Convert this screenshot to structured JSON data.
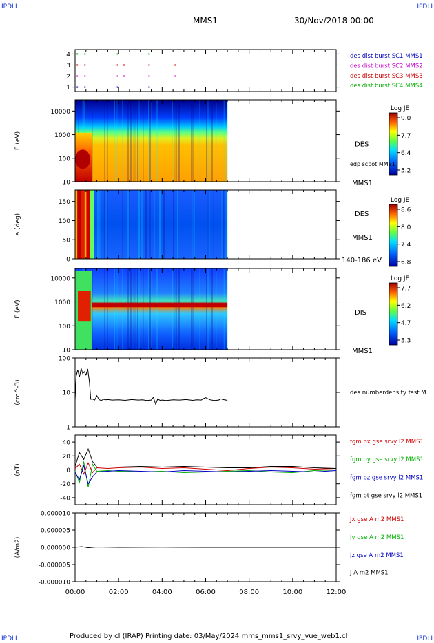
{
  "corner_labels": {
    "top_left": "IPDLI",
    "top_right": "IPDLI",
    "bottom_left": "IPDLI",
    "bottom_right": "IPDLI"
  },
  "header": {
    "spacecraft": "MMS1",
    "datetime": "30/Nov/2018 00:00"
  },
  "footer": "Produced by cl (IRAP)   Printing date: 03/May/2024   mms_mms1_srvy_vue_web1.cl",
  "x_axis": {
    "ticks": [
      "00:00",
      "02:00",
      "04:00",
      "06:00",
      "08:00",
      "10:00",
      "12:00"
    ],
    "range_hours": [
      0,
      12
    ]
  },
  "colors": {
    "red": "#d00000",
    "green": "#00b000",
    "blue": "#0000c0",
    "magenta": "#d000d0",
    "black": "#000000"
  },
  "chart_data": [
    {
      "type": "scatter",
      "id": "burst",
      "ylim": [
        0.6,
        4.4
      ],
      "y_ticks": [
        "4",
        "3",
        "2",
        "1"
      ],
      "y_tick_values": [
        4,
        3,
        2,
        1
      ],
      "legend": [
        {
          "label": "des dist burst SC1 MMS1",
          "color": "#0000c0"
        },
        {
          "label": "des dist burst SC2 MMS2",
          "color": "#d000d0"
        },
        {
          "label": "des dist burst SC3 MMS3",
          "color": "#d00000"
        },
        {
          "label": "des dist burst SC4 MMS4",
          "color": "#00b000"
        }
      ],
      "points": [
        {
          "t": 0.1,
          "y": 4,
          "c": "#00b000"
        },
        {
          "t": 0.45,
          "y": 4,
          "c": "#00b000"
        },
        {
          "t": 1.95,
          "y": 4,
          "c": "#00b000"
        },
        {
          "t": 3.4,
          "y": 4,
          "c": "#00b000"
        },
        {
          "t": 0.1,
          "y": 3,
          "c": "#d00000"
        },
        {
          "t": 0.45,
          "y": 3,
          "c": "#d00000"
        },
        {
          "t": 1.95,
          "y": 3,
          "c": "#d00000"
        },
        {
          "t": 2.25,
          "y": 3,
          "c": "#d00000"
        },
        {
          "t": 3.4,
          "y": 3,
          "c": "#d00000"
        },
        {
          "t": 4.6,
          "y": 3,
          "c": "#d00000"
        },
        {
          "t": 0.1,
          "y": 2,
          "c": "#d000d0"
        },
        {
          "t": 0.45,
          "y": 2,
          "c": "#d000d0"
        },
        {
          "t": 1.95,
          "y": 2,
          "c": "#d000d0"
        },
        {
          "t": 2.25,
          "y": 2,
          "c": "#d000d0"
        },
        {
          "t": 3.4,
          "y": 2,
          "c": "#d000d0"
        },
        {
          "t": 4.6,
          "y": 2,
          "c": "#d000d0"
        },
        {
          "t": 0.1,
          "y": 1,
          "c": "#0000c0"
        },
        {
          "t": 0.45,
          "y": 1,
          "c": "#0000c0"
        },
        {
          "t": 1.95,
          "y": 1,
          "c": "#0000c0"
        },
        {
          "t": 3.4,
          "y": 1,
          "c": "#0000c0"
        }
      ]
    },
    {
      "type": "heatmap",
      "id": "des_energy",
      "ylabel": "E (eV)",
      "y_ticks": [
        "10000",
        "1000",
        "100",
        "10"
      ],
      "y_tick_values": [
        10000,
        1000,
        100,
        10
      ],
      "ylim": [
        10,
        30000
      ],
      "log_y": true,
      "data_extent_hours": [
        0,
        7.0
      ],
      "species": "DES",
      "extra_label": "edp scpot MMS1",
      "bottom_label": "MMS1",
      "colorbar": {
        "title": "Log JE",
        "ticks": [
          "9.0",
          "7.7",
          "6.4",
          "5.2"
        ]
      }
    },
    {
      "type": "heatmap",
      "id": "des_pitch",
      "ylabel": "a (deg)",
      "y_ticks": [
        "150",
        "100",
        "50",
        "0"
      ],
      "y_tick_values": [
        150,
        100,
        50,
        0
      ],
      "ylim": [
        0,
        180
      ],
      "data_extent_hours": [
        0,
        7.0
      ],
      "species": "DES",
      "sc_label": "MMS1",
      "energy_label": "140-186 eV",
      "colorbar": {
        "title": "Log JE",
        "ticks": [
          "8.6",
          "8.0",
          "7.4",
          "6.8"
        ]
      }
    },
    {
      "type": "heatmap",
      "id": "dis_energy",
      "ylabel": "E (eV)",
      "y_ticks": [
        "10000",
        "1000",
        "100",
        "10"
      ],
      "y_tick_values": [
        10000,
        1000,
        100,
        10
      ],
      "ylim": [
        10,
        25000
      ],
      "log_y": true,
      "data_extent_hours": [
        0,
        7.0
      ],
      "species": "DIS",
      "bottom_label": "MMS1",
      "colorbar": {
        "title": "Log JE",
        "ticks": [
          "7.7",
          "6.2",
          "4.7",
          "3.3"
        ]
      }
    },
    {
      "type": "line",
      "id": "density",
      "ylabel": "(cm^-3)",
      "y_ticks": [
        "100",
        "10",
        "1"
      ],
      "y_tick_values": [
        100,
        10,
        1
      ],
      "ylim": [
        1,
        100
      ],
      "log_y": true,
      "legend": [
        {
          "label": "des numberdensity fast M",
          "color": "#000000"
        }
      ],
      "series": [
        {
          "name": "des numberdensity fast M",
          "color": "#000000",
          "t": [
            0.0,
            0.05,
            0.12,
            0.2,
            0.28,
            0.35,
            0.42,
            0.5,
            0.58,
            0.66,
            0.72,
            0.8,
            0.9,
            1.0,
            1.1,
            1.2,
            1.3,
            1.4,
            1.5,
            1.7,
            2.0,
            2.3,
            2.6,
            2.9,
            3.1,
            3.3,
            3.5,
            3.6,
            3.7,
            3.8,
            3.9,
            4.0,
            4.2,
            4.5,
            4.8,
            5.1,
            5.4,
            5.6,
            5.8,
            5.9,
            6.0,
            6.2,
            6.4,
            6.6,
            6.7,
            6.8,
            7.0
          ],
          "values": [
            5.9,
            30,
            45,
            28,
            50,
            35,
            40,
            32,
            48,
            20,
            6.3,
            6.4,
            6.0,
            8.0,
            6.2,
            5.8,
            6.3,
            6.1,
            6.2,
            6.0,
            6.1,
            5.9,
            6.2,
            6.0,
            6.1,
            5.8,
            6.0,
            7.2,
            4.5,
            6.5,
            5.9,
            6.0,
            5.8,
            6.1,
            6.0,
            6.2,
            5.9,
            6.1,
            6.0,
            6.6,
            7.0,
            6.1,
            5.8,
            6.0,
            6.5,
            6.2,
            5.9
          ]
        }
      ]
    },
    {
      "type": "line",
      "id": "magnetic_field",
      "ylabel": "(nT)",
      "y_ticks": [
        "40",
        "20",
        "0",
        "-20",
        "-40"
      ],
      "y_tick_values": [
        40,
        20,
        0,
        -20,
        -40
      ],
      "ylim": [
        -50,
        50
      ],
      "legend": [
        {
          "label": "fgm bx gse srvy l2 MMS1",
          "color": "#d00000"
        },
        {
          "label": "fgm by gse srvy l2 MMS1",
          "color": "#00b000"
        },
        {
          "label": "fgm bz gse srvy l2 MMS1",
          "color": "#0000c0"
        },
        {
          "label": "fgm bt gse srvy l2 MMS1",
          "color": "#000000"
        }
      ],
      "series": [
        {
          "name": "fgm bx gse srvy l2 MMS1",
          "color": "#d00000",
          "t": [
            0,
            0.2,
            0.4,
            0.6,
            0.8,
            1,
            1.5,
            2,
            3,
            4,
            5,
            6,
            7,
            8,
            9,
            10,
            11,
            12
          ],
          "values": [
            2,
            8,
            -6,
            10,
            -4,
            3,
            2,
            3,
            4,
            2,
            3,
            1,
            -1,
            2,
            4,
            3,
            1,
            2
          ]
        },
        {
          "name": "fgm by gse srvy l2 MMS1",
          "color": "#00b000",
          "t": [
            0,
            0.2,
            0.4,
            0.6,
            0.8,
            1,
            1.5,
            2,
            3,
            4,
            5,
            6,
            7,
            8,
            9,
            10,
            11,
            12
          ],
          "values": [
            -2,
            -18,
            12,
            -25,
            8,
            -2,
            -1,
            -2,
            -3,
            -2,
            -4,
            -3,
            -2,
            -1,
            -3,
            -4,
            -1,
            0
          ]
        },
        {
          "name": "fgm bz gse srvy l2 MMS1",
          "color": "#0000c0",
          "t": [
            0,
            0.2,
            0.4,
            0.6,
            0.8,
            1,
            1.5,
            2,
            3,
            4,
            5,
            6,
            7,
            8,
            9,
            10,
            11,
            12
          ],
          "values": [
            -4,
            -14,
            6,
            -20,
            -10,
            -3,
            -2,
            -1,
            -2,
            -3,
            -1,
            -2,
            -3,
            -2,
            -1,
            -2,
            -3,
            -1
          ]
        },
        {
          "name": "fgm bt gse srvy l2 MMS1",
          "color": "#000000",
          "t": [
            0,
            0.2,
            0.4,
            0.6,
            0.8,
            1,
            1.5,
            2,
            3,
            4,
            5,
            6,
            7,
            8,
            9,
            10,
            11,
            12
          ],
          "values": [
            5,
            25,
            15,
            30,
            12,
            4,
            4,
            4,
            5,
            4,
            5,
            4,
            3,
            3,
            5,
            5,
            3,
            2
          ]
        }
      ]
    },
    {
      "type": "line",
      "id": "current",
      "ylabel": "(A/m2)",
      "y_ticks": [
        "0.000010",
        "0.000005",
        "0.000000",
        "-0.000005",
        "-0.000010"
      ],
      "y_tick_values": [
        1e-05,
        5e-06,
        0,
        -5e-06,
        -1e-05
      ],
      "ylim": [
        -1e-05,
        1e-05
      ],
      "legend": [
        {
          "label": "Jx gse A m2 MMS1",
          "color": "#d00000"
        },
        {
          "label": "Jy gse A m2 MMS1",
          "color": "#00b000"
        },
        {
          "label": "Jz gse A m2 MMS1",
          "color": "#0000c0"
        },
        {
          "label": "J A m2 MMS1",
          "color": "#000000"
        }
      ],
      "series": [
        {
          "name": "J A m2 MMS1",
          "color": "#000000",
          "t": [
            0,
            0.3,
            0.6,
            1,
            2,
            4,
            6,
            8,
            10,
            12
          ],
          "values": [
            0,
            2e-07,
            -1e-07,
            1e-07,
            0,
            5e-08,
            0,
            0,
            0,
            0
          ]
        }
      ]
    }
  ]
}
